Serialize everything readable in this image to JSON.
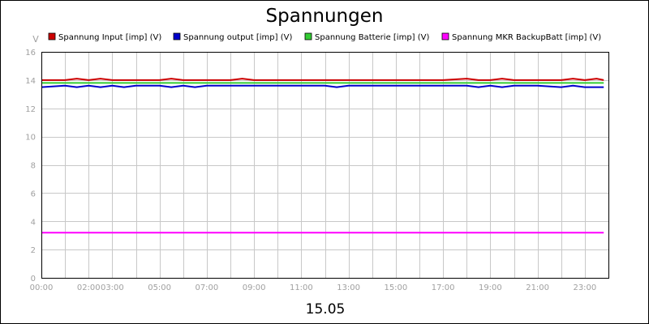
{
  "chart_data": {
    "type": "line",
    "title": "Spannungen",
    "xlabel": "15.05",
    "ylabel": "V",
    "ylim": [
      0,
      16
    ],
    "yticks": [
      0,
      2,
      4,
      6,
      8,
      10,
      12,
      14,
      16
    ],
    "xlim": [
      0,
      24
    ],
    "xticks": [
      {
        "label": "00:00",
        "hour": 0
      },
      {
        "label": "02:00",
        "hour": 2
      },
      {
        "label": "03:00",
        "hour": 3
      },
      {
        "label": "05:00",
        "hour": 5
      },
      {
        "label": "07:00",
        "hour": 7
      },
      {
        "label": "09:00",
        "hour": 9
      },
      {
        "label": "11:00",
        "hour": 11
      },
      {
        "label": "13:00",
        "hour": 13
      },
      {
        "label": "15:00",
        "hour": 15
      },
      {
        "label": "17:00",
        "hour": 17
      },
      {
        "label": "19:00",
        "hour": 19
      },
      {
        "label": "21:00",
        "hour": 21
      },
      {
        "label": "23:00",
        "hour": 23
      }
    ],
    "gridlines_hours": [
      0,
      1,
      2,
      3,
      4,
      5,
      6,
      7,
      8,
      9,
      10,
      11,
      12,
      13,
      14,
      15,
      16,
      17,
      18,
      19,
      20,
      21,
      22,
      23
    ],
    "x": [
      0,
      1,
      1.5,
      2,
      2.5,
      3,
      3.5,
      4,
      5,
      5.5,
      6,
      6.5,
      7,
      8,
      8.5,
      9,
      10,
      11,
      12,
      12.5,
      13,
      14,
      15,
      16,
      17,
      18,
      18.5,
      19,
      19.5,
      20,
      21,
      22,
      22.5,
      23,
      23.5,
      23.8
    ],
    "series": [
      {
        "name": "Spannung Input [imp] (V)",
        "color": "#cc0000",
        "values": [
          14.0,
          14.0,
          14.1,
          14.0,
          14.1,
          14.0,
          14.0,
          14.0,
          14.0,
          14.1,
          14.0,
          14.0,
          14.0,
          14.0,
          14.1,
          14.0,
          14.0,
          14.0,
          14.0,
          14.0,
          14.0,
          14.0,
          14.0,
          14.0,
          14.0,
          14.1,
          14.0,
          14.0,
          14.1,
          14.0,
          14.0,
          14.0,
          14.1,
          14.0,
          14.1,
          14.0
        ]
      },
      {
        "name": "Spannung output [imp] (V)",
        "color": "#0000cc",
        "values": [
          13.5,
          13.6,
          13.5,
          13.6,
          13.5,
          13.6,
          13.5,
          13.6,
          13.6,
          13.5,
          13.6,
          13.5,
          13.6,
          13.6,
          13.6,
          13.6,
          13.6,
          13.6,
          13.6,
          13.5,
          13.6,
          13.6,
          13.6,
          13.6,
          13.6,
          13.6,
          13.5,
          13.6,
          13.5,
          13.6,
          13.6,
          13.5,
          13.6,
          13.5,
          13.5,
          13.5
        ]
      },
      {
        "name": "Spannung Batterie [imp] (V)",
        "color": "#33cc33",
        "values": [
          13.8,
          13.8,
          13.8,
          13.8,
          13.8,
          13.8,
          13.8,
          13.8,
          13.8,
          13.8,
          13.8,
          13.8,
          13.8,
          13.8,
          13.8,
          13.8,
          13.8,
          13.8,
          13.8,
          13.8,
          13.8,
          13.8,
          13.8,
          13.8,
          13.8,
          13.8,
          13.8,
          13.8,
          13.8,
          13.8,
          13.8,
          13.8,
          13.8,
          13.8,
          13.8,
          13.8
        ]
      },
      {
        "name": "Spannung MKR BackupBatt [imp] (V)",
        "color": "#ff00ff",
        "values": [
          3.2,
          3.2,
          3.2,
          3.2,
          3.2,
          3.2,
          3.2,
          3.2,
          3.2,
          3.2,
          3.2,
          3.2,
          3.2,
          3.2,
          3.2,
          3.2,
          3.2,
          3.2,
          3.2,
          3.2,
          3.2,
          3.2,
          3.2,
          3.2,
          3.2,
          3.2,
          3.2,
          3.2,
          3.2,
          3.2,
          3.2,
          3.2,
          3.2,
          3.2,
          3.2,
          3.2
        ]
      }
    ]
  }
}
